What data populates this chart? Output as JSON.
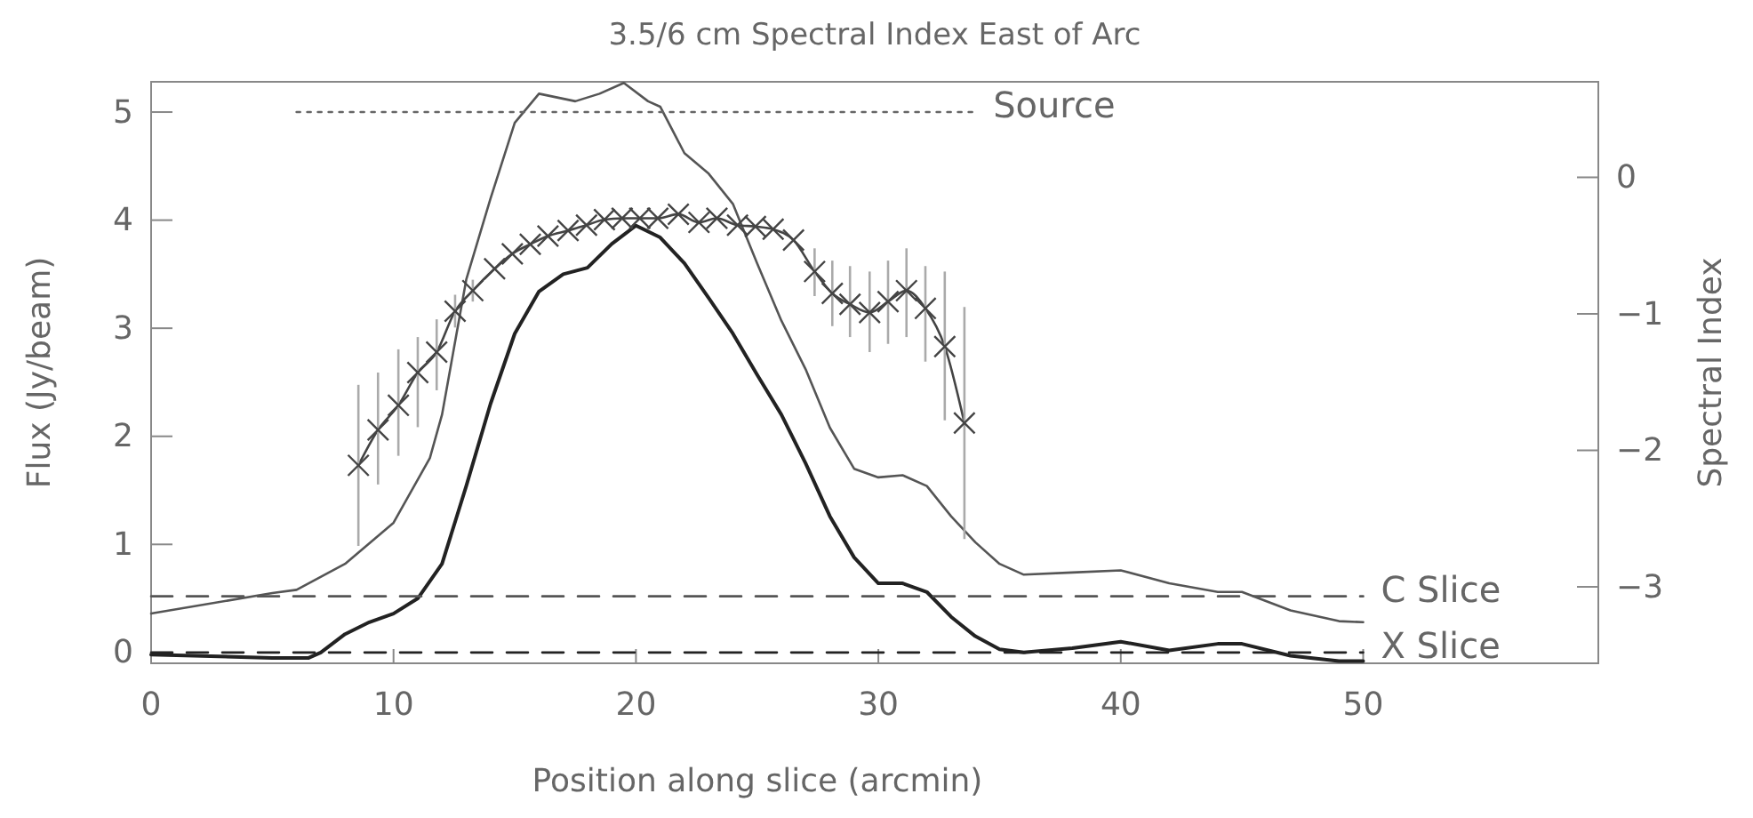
{
  "chart_data": {
    "type": "line",
    "title": "3.5/6 cm Spectral Index East of Arc",
    "xlabel": "Position along slice (arcmin)",
    "ylabel": "Flux (Jy/beam)",
    "y2label": "Spectral Index",
    "xlim": [
      0,
      59.7
    ],
    "xticks": [
      0,
      10,
      20,
      30,
      40,
      50
    ],
    "ylim": [
      -0.1,
      5.28
    ],
    "yticks": [
      0,
      1,
      2,
      3,
      4,
      5
    ],
    "y2lim": [
      -3.56,
      0.7
    ],
    "y2ticks": [
      -3,
      -2,
      -1,
      0
    ],
    "grid": false,
    "series": [
      {
        "color": "#555555",
        "line_style": "solid",
        "x": [
          0,
          5,
          6,
          8,
          10,
          11.5,
          12,
          13,
          14,
          15,
          16,
          17.5,
          18.5,
          19.5,
          20.5,
          21,
          22,
          23,
          24,
          25,
          26,
          27,
          28,
          29,
          30,
          31,
          32,
          33,
          34,
          35,
          36,
          38,
          40,
          42,
          44,
          45,
          47,
          49,
          50
        ],
        "values": [
          0.36,
          0.55,
          0.58,
          0.82,
          1.2,
          1.8,
          2.2,
          3.45,
          4.2,
          4.9,
          5.17,
          5.1,
          5.17,
          5.27,
          5.1,
          5.05,
          4.62,
          4.43,
          4.15,
          3.6,
          3.07,
          2.62,
          2.08,
          1.7,
          1.62,
          1.64,
          1.54,
          1.26,
          1.02,
          0.82,
          0.72,
          0.74,
          0.76,
          0.64,
          0.56,
          0.56,
          0.39,
          0.29,
          0.28
        ]
      },
      {
        "color": "#222222",
        "line_style": "solid",
        "x": [
          0,
          5,
          6.5,
          7,
          8,
          9,
          10,
          11,
          12,
          13,
          14,
          15,
          16,
          17,
          18,
          19,
          20,
          21,
          22,
          23,
          24,
          25,
          26,
          27,
          28,
          29,
          30,
          31,
          32,
          33,
          34,
          35,
          36,
          38,
          40,
          42,
          44,
          45,
          47,
          49,
          50
        ],
        "values": [
          -0.02,
          -0.05,
          -0.05,
          0,
          0.17,
          0.28,
          0.36,
          0.5,
          0.82,
          1.54,
          2.3,
          2.95,
          3.34,
          3.5,
          3.56,
          3.78,
          3.95,
          3.84,
          3.6,
          3.28,
          2.95,
          2.57,
          2.2,
          1.75,
          1.26,
          0.88,
          0.64,
          0.64,
          0.56,
          0.33,
          0.15,
          0.03,
          0,
          0.04,
          0.1,
          0.02,
          0.08,
          0.08,
          -0.03,
          -0.08,
          -0.08
        ]
      },
      {
        "color": "#444444",
        "line_style": "solid",
        "marker": "cross",
        "axis": "y2",
        "x": [
          8.55,
          9.36,
          10.2,
          11.0,
          11.78,
          12.54,
          13.27,
          14.17,
          14.9,
          15.64,
          16.37,
          17.2,
          17.96,
          18.7,
          19.43,
          20.16,
          20.9,
          21.75,
          22.6,
          23.34,
          24.19,
          24.93,
          25.66,
          26.5,
          27.37,
          28.1,
          28.83,
          29.64,
          30.4,
          31.16,
          31.94,
          32.74,
          33.55
        ],
        "values": [
          -2.11,
          -1.85,
          -1.67,
          -1.43,
          -1.28,
          -0.98,
          -0.83,
          -0.67,
          -0.56,
          -0.49,
          -0.43,
          -0.39,
          -0.35,
          -0.31,
          -0.3,
          -0.3,
          -0.3,
          -0.27,
          -0.33,
          -0.3,
          -0.35,
          -0.36,
          -0.38,
          -0.46,
          -0.69,
          -0.85,
          -0.93,
          -0.99,
          -0.91,
          -0.83,
          -0.96,
          -1.24,
          -1.8
        ],
        "errors": [
          [
            -2.7,
            -1.52
          ],
          [
            -2.25,
            -1.43
          ],
          [
            -2.04,
            -1.26
          ],
          [
            -1.83,
            -1.17
          ],
          [
            -1.56,
            -1.04
          ],
          [
            -1.1,
            -0.86
          ],
          [
            -0.91,
            -0.75
          ],
          null,
          null,
          null,
          null,
          null,
          null,
          null,
          null,
          null,
          null,
          null,
          null,
          null,
          null,
          null,
          null,
          null,
          [
            -0.87,
            -0.52
          ],
          [
            -1.09,
            -0.61
          ],
          [
            -1.17,
            -0.65
          ],
          [
            -1.28,
            -0.69
          ],
          [
            -1.22,
            -0.61
          ],
          [
            -1.17,
            -0.52
          ],
          [
            -1.35,
            -0.65
          ],
          [
            -1.78,
            -0.69
          ],
          [
            -2.65,
            -0.95
          ]
        ]
      },
      {
        "name": "Source",
        "color": "#666666",
        "line_style": "dotted",
        "x": [
          6,
          34
        ],
        "values": [
          5,
          5
        ]
      },
      {
        "name": "C Slice",
        "color": "#555555",
        "line_style": "dashed",
        "x": [
          0,
          50
        ],
        "values": [
          0.52,
          0.52
        ]
      },
      {
        "name": "X Slice",
        "color": "#222222",
        "line_style": "dashed",
        "x": [
          0,
          50
        ],
        "values": [
          0,
          0
        ]
      }
    ]
  }
}
